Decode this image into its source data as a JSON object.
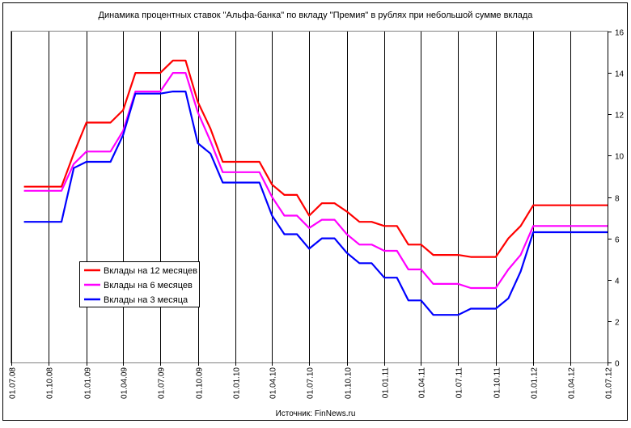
{
  "chart_data": {
    "type": "line",
    "title": "Динамика процентных ставок \"Альфа-банка\" по вкладу \"Премия\" в рублях при небольшой сумме вклада",
    "source": "Источник: FinNews.ru",
    "xlabel": "",
    "ylabel": "",
    "x_axis": {
      "type": "date",
      "min": "2008-07-01",
      "max": "2012-07-01",
      "tick_labels": [
        "01.07.08",
        "01.10.08",
        "01.01.09",
        "01.04.09",
        "01.07.09",
        "01.10.09",
        "01.01.10",
        "01.04.10",
        "01.07.10",
        "01.10.10",
        "01.01.11",
        "01.04.11",
        "01.07.11",
        "01.10.11",
        "01.01.12",
        "01.04.12",
        "01.07.12"
      ]
    },
    "y_axis": {
      "position": "right",
      "ylim": [
        0,
        16
      ],
      "ticks": [
        0,
        2,
        4,
        6,
        8,
        10,
        12,
        14,
        16
      ]
    },
    "grid": {
      "vertical": true,
      "horizontal": false
    },
    "legend_position": "lower-left",
    "series": [
      {
        "name": "Вклады на 12 месяцев",
        "color": "#ff0000",
        "points": [
          [
            "2008-08-01",
            8.5
          ],
          [
            "2008-11-01",
            8.5
          ],
          [
            "2008-12-01",
            10.1
          ],
          [
            "2009-01-01",
            11.6
          ],
          [
            "2009-03-01",
            11.6
          ],
          [
            "2009-04-01",
            12.2
          ],
          [
            "2009-05-01",
            14.0
          ],
          [
            "2009-07-01",
            14.0
          ],
          [
            "2009-08-01",
            14.6
          ],
          [
            "2009-09-01",
            14.6
          ],
          [
            "2009-10-01",
            12.6
          ],
          [
            "2009-11-01",
            11.3
          ],
          [
            "2009-12-01",
            9.7
          ],
          [
            "2010-03-01",
            9.7
          ],
          [
            "2010-04-01",
            8.6
          ],
          [
            "2010-05-01",
            8.1
          ],
          [
            "2010-06-01",
            8.1
          ],
          [
            "2010-07-01",
            7.1
          ],
          [
            "2010-08-01",
            7.7
          ],
          [
            "2010-09-01",
            7.7
          ],
          [
            "2010-10-01",
            7.3
          ],
          [
            "2010-11-01",
            6.8
          ],
          [
            "2010-12-01",
            6.8
          ],
          [
            "2011-01-01",
            6.6
          ],
          [
            "2011-02-01",
            6.6
          ],
          [
            "2011-03-01",
            5.7
          ],
          [
            "2011-04-01",
            5.7
          ],
          [
            "2011-05-01",
            5.2
          ],
          [
            "2011-07-01",
            5.2
          ],
          [
            "2011-08-01",
            5.1
          ],
          [
            "2011-10-01",
            5.1
          ],
          [
            "2011-11-01",
            6.0
          ],
          [
            "2011-12-01",
            6.6
          ],
          [
            "2012-01-01",
            7.6
          ],
          [
            "2012-07-01",
            7.6
          ]
        ]
      },
      {
        "name": "Вклады на 6 месяцев",
        "color": "#ff00ff",
        "points": [
          [
            "2008-08-01",
            8.3
          ],
          [
            "2008-11-01",
            8.3
          ],
          [
            "2008-12-01",
            9.6
          ],
          [
            "2009-01-01",
            10.2
          ],
          [
            "2009-03-01",
            10.2
          ],
          [
            "2009-04-01",
            11.2
          ],
          [
            "2009-05-01",
            13.1
          ],
          [
            "2009-07-01",
            13.1
          ],
          [
            "2009-08-01",
            14.0
          ],
          [
            "2009-09-01",
            14.0
          ],
          [
            "2009-10-01",
            12.1
          ],
          [
            "2009-11-01",
            10.7
          ],
          [
            "2009-12-01",
            9.2
          ],
          [
            "2010-03-01",
            9.2
          ],
          [
            "2010-04-01",
            8.0
          ],
          [
            "2010-05-01",
            7.1
          ],
          [
            "2010-06-01",
            7.1
          ],
          [
            "2010-07-01",
            6.5
          ],
          [
            "2010-08-01",
            6.9
          ],
          [
            "2010-09-01",
            6.9
          ],
          [
            "2010-10-01",
            6.2
          ],
          [
            "2010-11-01",
            5.7
          ],
          [
            "2010-12-01",
            5.7
          ],
          [
            "2011-01-01",
            5.4
          ],
          [
            "2011-02-01",
            5.4
          ],
          [
            "2011-03-01",
            4.5
          ],
          [
            "2011-04-01",
            4.5
          ],
          [
            "2011-05-01",
            3.8
          ],
          [
            "2011-07-01",
            3.8
          ],
          [
            "2011-08-01",
            3.6
          ],
          [
            "2011-10-01",
            3.6
          ],
          [
            "2011-11-01",
            4.5
          ],
          [
            "2011-12-01",
            5.2
          ],
          [
            "2012-01-01",
            6.6
          ],
          [
            "2012-07-01",
            6.6
          ]
        ]
      },
      {
        "name": "Вклады на 3 месяца",
        "color": "#0000ff",
        "points": [
          [
            "2008-08-01",
            6.8
          ],
          [
            "2008-11-01",
            6.8
          ],
          [
            "2008-12-01",
            9.4
          ],
          [
            "2009-01-01",
            9.7
          ],
          [
            "2009-03-01",
            9.7
          ],
          [
            "2009-04-01",
            11.0
          ],
          [
            "2009-05-01",
            13.0
          ],
          [
            "2009-07-01",
            13.0
          ],
          [
            "2009-08-01",
            13.1
          ],
          [
            "2009-09-01",
            13.1
          ],
          [
            "2009-10-01",
            10.6
          ],
          [
            "2009-11-01",
            10.1
          ],
          [
            "2009-12-01",
            8.7
          ],
          [
            "2010-03-01",
            8.7
          ],
          [
            "2010-04-01",
            7.1
          ],
          [
            "2010-05-01",
            6.2
          ],
          [
            "2010-06-01",
            6.2
          ],
          [
            "2010-07-01",
            5.5
          ],
          [
            "2010-08-01",
            6.0
          ],
          [
            "2010-09-01",
            6.0
          ],
          [
            "2010-10-01",
            5.3
          ],
          [
            "2010-11-01",
            4.8
          ],
          [
            "2010-12-01",
            4.8
          ],
          [
            "2011-01-01",
            4.1
          ],
          [
            "2011-02-01",
            4.1
          ],
          [
            "2011-03-01",
            3.0
          ],
          [
            "2011-04-01",
            3.0
          ],
          [
            "2011-05-01",
            2.3
          ],
          [
            "2011-07-01",
            2.3
          ],
          [
            "2011-08-01",
            2.6
          ],
          [
            "2011-10-01",
            2.6
          ],
          [
            "2011-11-01",
            3.1
          ],
          [
            "2011-12-01",
            4.4
          ],
          [
            "2012-01-01",
            6.3
          ],
          [
            "2012-07-01",
            6.3
          ]
        ]
      }
    ]
  }
}
